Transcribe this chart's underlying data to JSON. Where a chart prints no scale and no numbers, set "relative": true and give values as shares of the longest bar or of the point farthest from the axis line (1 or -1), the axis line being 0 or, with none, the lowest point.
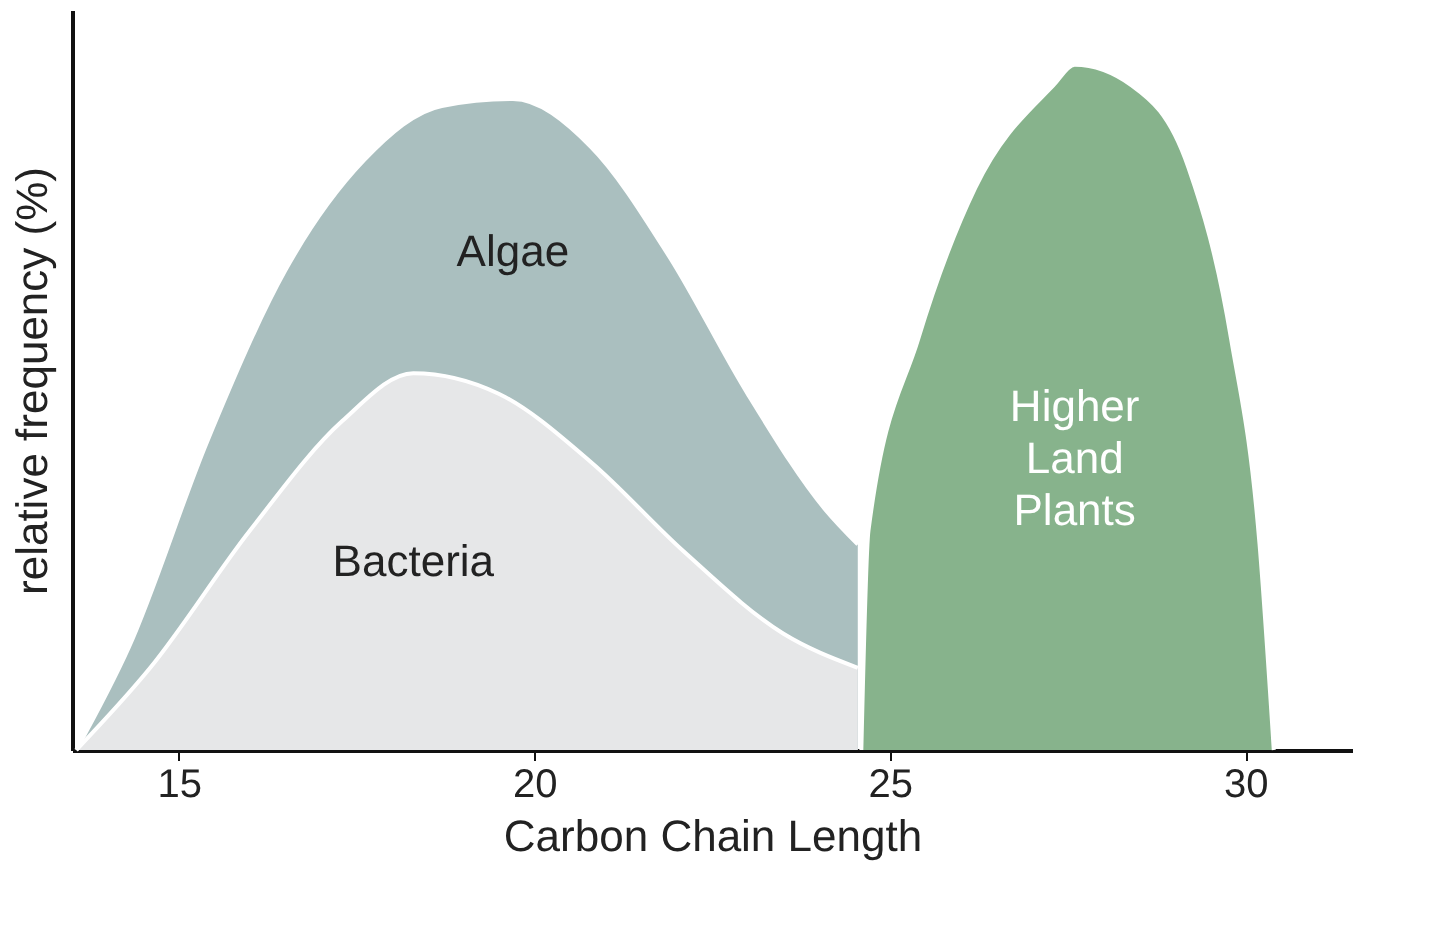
{
  "chart_data": {
    "type": "area",
    "relative": true,
    "xlabel": "Carbon Chain Length",
    "ylabel": "relative frequency (%)",
    "xlim": [
      13.5,
      31.5
    ],
    "xticks": [
      15,
      20,
      25,
      30
    ],
    "grid": false,
    "series": [
      {
        "name": "Algae",
        "color": "#aabfbf",
        "x": [
          13.56,
          14.3,
          15.4,
          16.5,
          17.6,
          18.7,
          19.7,
          20.8,
          21.9,
          23.0,
          24.1,
          24.55
        ],
        "values": [
          0,
          0.15,
          0.45,
          0.7,
          0.86,
          0.94,
          0.95,
          0.88,
          0.72,
          0.52,
          0.35,
          0.3
        ]
      },
      {
        "name": "Bacteria",
        "color": "#e6e7e8",
        "x": [
          13.56,
          14.6,
          16.0,
          17.3,
          18.3,
          19.5,
          20.8,
          22.1,
          23.5,
          24.55
        ],
        "values": [
          0,
          0.12,
          0.32,
          0.48,
          0.55,
          0.52,
          0.42,
          0.29,
          0.17,
          0.12
        ]
      },
      {
        "name": "Higher\nLand\nPlants",
        "color": "#87b38c",
        "x": [
          24.6,
          24.7,
          25.4,
          26.2,
          27.3,
          27.6,
          28.4,
          29.2,
          29.8,
          30.2,
          30.4
        ],
        "values": [
          0,
          0.32,
          0.6,
          0.82,
          0.97,
          1.0,
          0.97,
          0.85,
          0.6,
          0.3,
          0
        ]
      }
    ]
  }
}
